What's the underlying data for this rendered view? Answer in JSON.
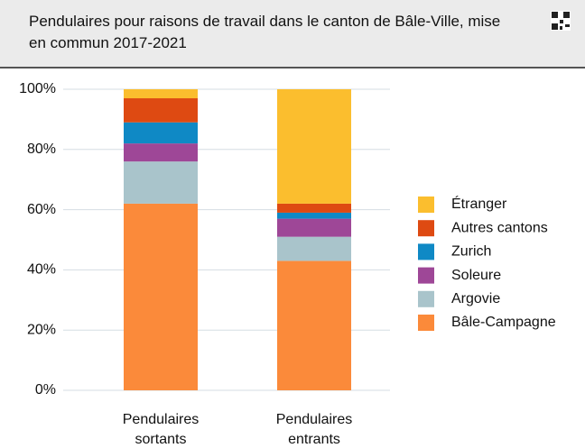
{
  "chart_data": {
    "type": "stacked_bar",
    "title": "Pendulaires pour raisons de travail dans le canton de Bâle-Ville, mise en commun 2017-2021",
    "categories": [
      "Pendulaires sortants",
      "Pendulaires entrants"
    ],
    "series": [
      {
        "name": "Bâle-Campagne",
        "color": "#fb8a3a",
        "values": [
          62,
          43
        ]
      },
      {
        "name": "Argovie",
        "color": "#a9c4cb",
        "values": [
          14,
          8
        ]
      },
      {
        "name": "Soleure",
        "color": "#9e4797",
        "values": [
          6,
          6
        ]
      },
      {
        "name": "Zurich",
        "color": "#0f89c5",
        "values": [
          7,
          2
        ]
      },
      {
        "name": "Autres cantons",
        "color": "#de4a12",
        "values": [
          8,
          3
        ]
      },
      {
        "name": "Étranger",
        "color": "#fbbe2e",
        "values": [
          3,
          38
        ]
      }
    ],
    "ylim": [
      0,
      100
    ],
    "yticks": [
      {
        "value": 0,
        "label": "0%"
      },
      {
        "value": 20,
        "label": "20%"
      },
      {
        "value": 40,
        "label": "40%"
      },
      {
        "value": 60,
        "label": "60%"
      },
      {
        "value": 80,
        "label": "80%"
      },
      {
        "value": 100,
        "label": "100%"
      }
    ],
    "grid": true,
    "legend": "right"
  }
}
